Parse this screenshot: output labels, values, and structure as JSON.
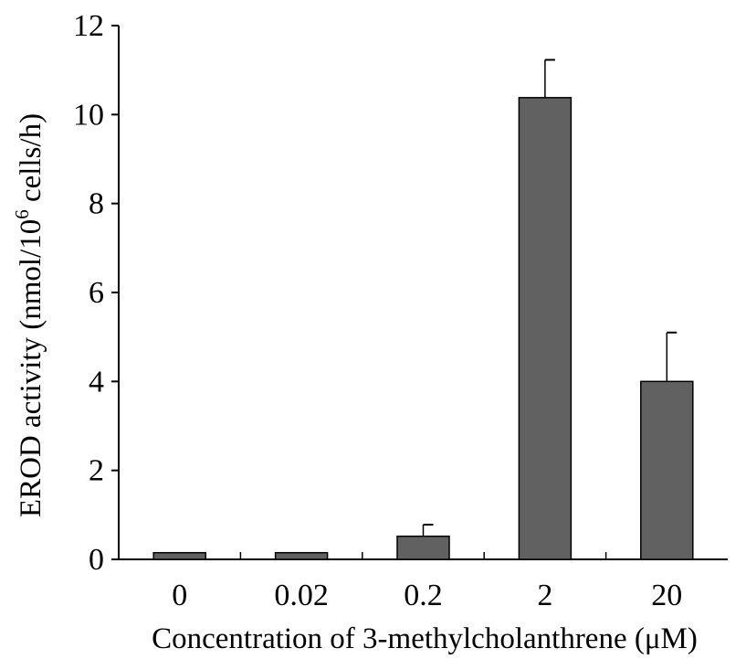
{
  "chart_data": {
    "type": "bar",
    "categories": [
      "0",
      "0.02",
      "0.2",
      "2",
      "20"
    ],
    "values": [
      0.15,
      0.15,
      0.52,
      10.38,
      4.0
    ],
    "error_plus": [
      0,
      0,
      0.26,
      0.85,
      1.1
    ],
    "xlabel": "Concentration of 3-methylcholanthrene (μM)",
    "ylabel": {
      "prefix": "EROD activity (nmol/10",
      "superscript": "6",
      "suffix": " cells/h)"
    },
    "ylim": [
      0,
      12
    ],
    "yticks": [
      "0",
      "2",
      "4",
      "6",
      "8",
      "10",
      "12"
    ],
    "grid": false,
    "colors": {
      "bar": "#616161",
      "bar_edge": "#000000",
      "axis": "#000000"
    }
  }
}
